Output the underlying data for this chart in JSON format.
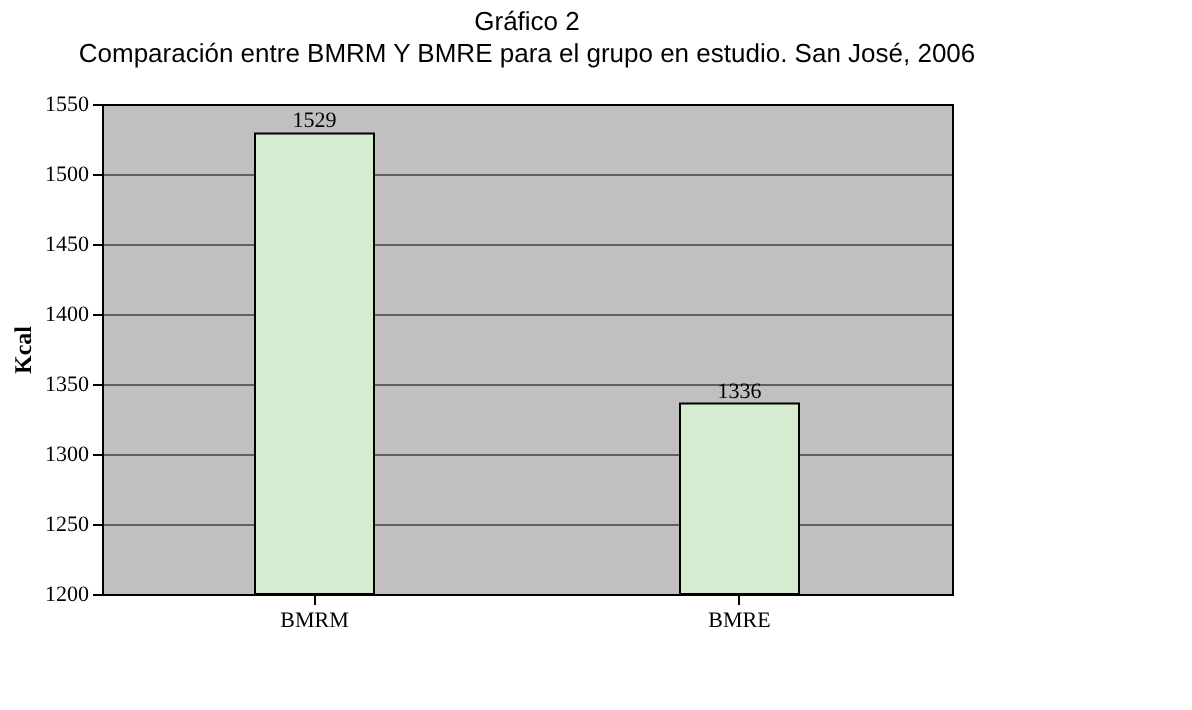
{
  "chart_data": {
    "type": "bar",
    "title": "Gráfico 2",
    "subtitle": "Comparación entre BMRM Y BMRE para el grupo en estudio. San José, 2006",
    "ylabel": "Kcal",
    "categories": [
      "BMRM",
      "BMRE"
    ],
    "values": [
      1529,
      1336
    ],
    "color": "#d6ecd0",
    "ylim": [
      1200,
      1550
    ],
    "yticks": [
      1200,
      1250,
      1300,
      1350,
      1400,
      1450,
      1500,
      1550
    ],
    "grid": "y",
    "data_labels": true
  }
}
